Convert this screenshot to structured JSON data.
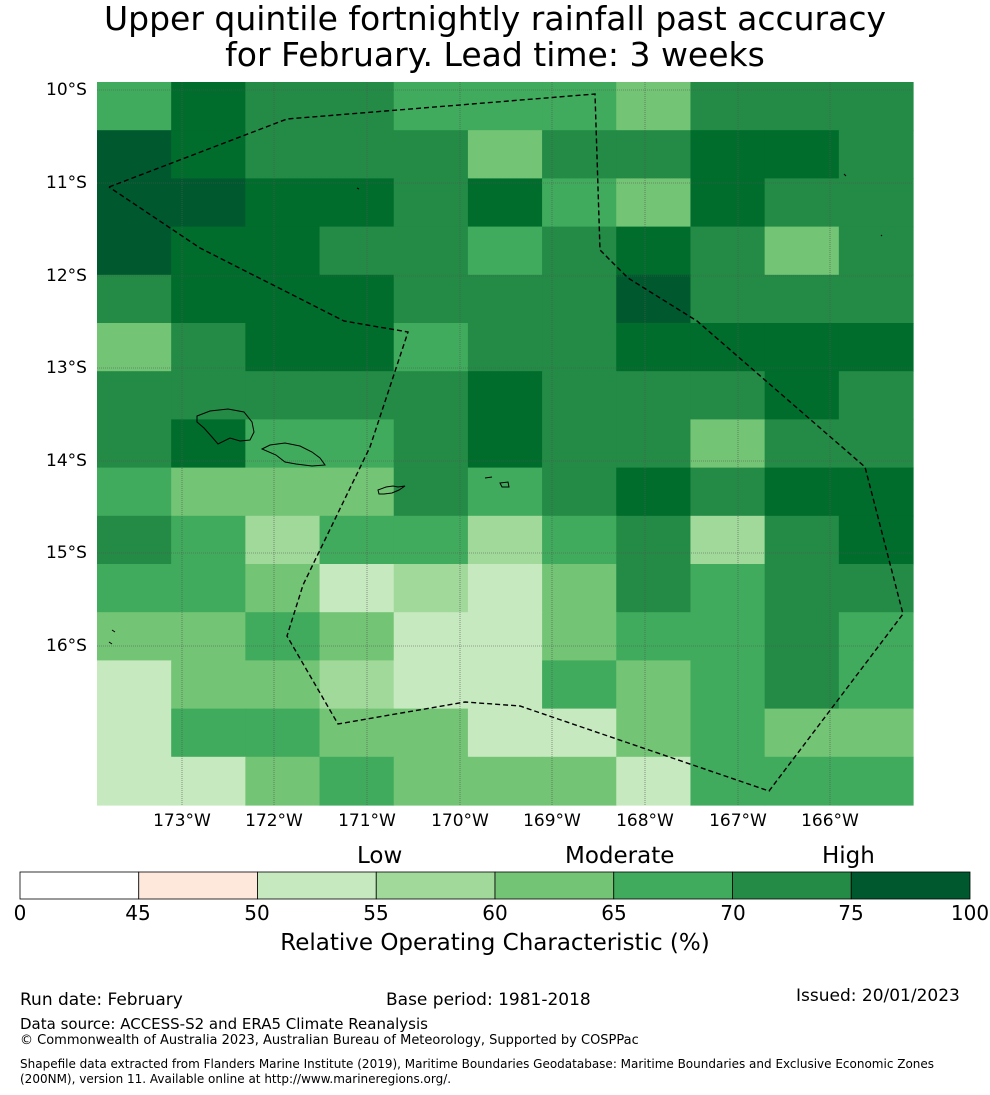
{
  "title_line1": "Upper quintile fortnightly rainfall past accuracy",
  "title_line2": "for February. Lead time: 3 weeks",
  "map": {
    "lat_labels": [
      "10°S",
      "11°S",
      "12°S",
      "13°S",
      "14°S",
      "15°S",
      "16°S"
    ],
    "lon_labels": [
      "173°W",
      "172°W",
      "171°W",
      "170°W",
      "169°W",
      "168°W",
      "167°W",
      "166°W"
    ],
    "grid_bins": [
      [
        3,
        5,
        4,
        4,
        3,
        3,
        3,
        2,
        4,
        4,
        4
      ],
      [
        6,
        5,
        4,
        4,
        4,
        2,
        4,
        4,
        5,
        5,
        4
      ],
      [
        6,
        6,
        5,
        5,
        4,
        5,
        3,
        2,
        5,
        4,
        4
      ],
      [
        6,
        5,
        5,
        4,
        4,
        3,
        4,
        5,
        4,
        2,
        4
      ],
      [
        4,
        5,
        5,
        5,
        4,
        4,
        4,
        6,
        4,
        4,
        4
      ],
      [
        2,
        4,
        5,
        5,
        3,
        4,
        4,
        5,
        5,
        5,
        5
      ],
      [
        4,
        4,
        4,
        4,
        4,
        5,
        4,
        4,
        4,
        5,
        4
      ],
      [
        4,
        5,
        3,
        3,
        4,
        5,
        4,
        4,
        2,
        4,
        4
      ],
      [
        3,
        2,
        2,
        2,
        4,
        3,
        4,
        5,
        4,
        5,
        5
      ],
      [
        4,
        3,
        1,
        3,
        3,
        1,
        3,
        4,
        1,
        4,
        5
      ],
      [
        3,
        3,
        2,
        0,
        1,
        0,
        2,
        4,
        3,
        4,
        4
      ],
      [
        2,
        2,
        3,
        2,
        0,
        0,
        2,
        3,
        3,
        4,
        3
      ],
      [
        0,
        2,
        2,
        1,
        0,
        0,
        3,
        2,
        3,
        4,
        3
      ],
      [
        0,
        3,
        3,
        2,
        2,
        0,
        0,
        2,
        3,
        2,
        2
      ],
      [
        0,
        0,
        2,
        3,
        2,
        2,
        2,
        0,
        3,
        3,
        3
      ]
    ],
    "bin_colors": [
      "#c7e9c0",
      "#a1d99b",
      "#74c476",
      "#41ab5d",
      "#238b45",
      "#006d2c",
      "#00592e"
    ]
  },
  "colorbar": {
    "category_labels": {
      "low": "Low",
      "moderate": "Moderate",
      "high": "High"
    },
    "ticks": [
      "0",
      "45",
      "50",
      "55",
      "60",
      "65",
      "70",
      "75",
      "100"
    ],
    "colors": [
      "#ffffff",
      "#fee8dc",
      "#c7e9c0",
      "#a1d99b",
      "#74c476",
      "#41ab5d",
      "#238b45",
      "#00592e"
    ],
    "title": "Relative Operating Characteristic (%)"
  },
  "footer": {
    "run_date": "Run date: February",
    "base_period": "Base period: 1981-2018",
    "issued": "Issued: 20/01/2023",
    "data_source": "Data source: ACCESS-S2 and ERA5 Climate Reanalysis",
    "copyright": "© Commonwealth of Australia 2023, Australian Bureau of Meteorology, Supported by COSPPac",
    "shapefile": "Shapefile data extracted from Flanders Marine Institute (2019), Maritime Boundaries Geodatabase: Maritime Boundaries and Exclusive Economic Zones (200NM), version 11. Available online at http://www.marineregions.org/."
  }
}
